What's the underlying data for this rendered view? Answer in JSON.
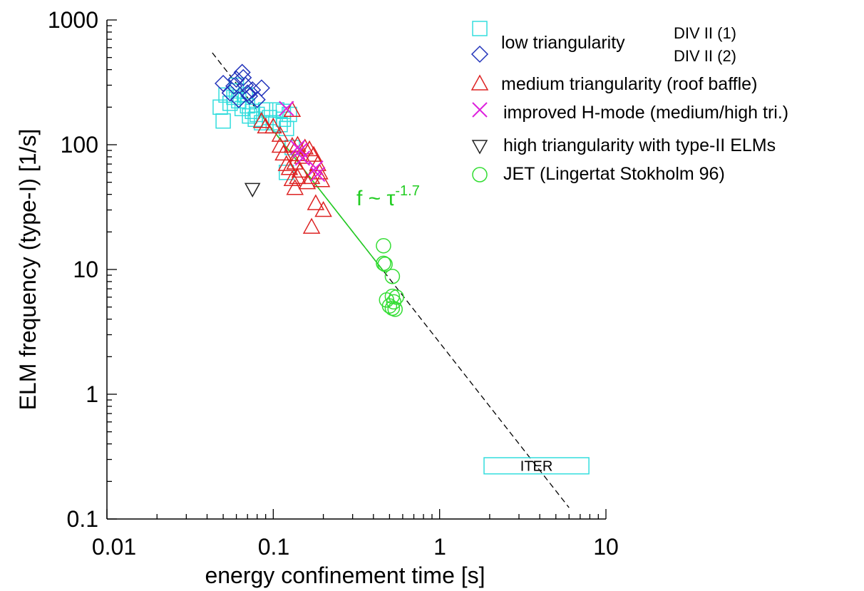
{
  "chart_data": {
    "type": "scatter",
    "xlabel": "energy confinement time [s]",
    "ylabel": "ELM frequency (type-I) [1/s]",
    "xscale": "log",
    "yscale": "log",
    "xlim": [
      0.01,
      10
    ],
    "ylim": [
      0.1,
      1000
    ],
    "x_tick_labels": [
      "0.01",
      "0.1",
      "1",
      "10"
    ],
    "y_tick_labels": [
      "1000",
      "100",
      "10",
      "1",
      "0.1"
    ],
    "legend_position": "top-right",
    "legend_group_label": "low triangularity",
    "series": [
      {
        "name": "DIV II (1)",
        "marker": "square",
        "color": "#33dddd",
        "points": [
          [
            0.048,
            200
          ],
          [
            0.05,
            155
          ],
          [
            0.052,
            250
          ],
          [
            0.055,
            215
          ],
          [
            0.058,
            240
          ],
          [
            0.06,
            270
          ],
          [
            0.062,
            225
          ],
          [
            0.065,
            195
          ],
          [
            0.068,
            250
          ],
          [
            0.07,
            205
          ],
          [
            0.072,
            170
          ],
          [
            0.075,
            185
          ],
          [
            0.078,
            160
          ],
          [
            0.08,
            175
          ],
          [
            0.085,
            150
          ],
          [
            0.09,
            190
          ],
          [
            0.095,
            165
          ],
          [
            0.1,
            150
          ],
          [
            0.105,
            190
          ],
          [
            0.11,
            145
          ],
          [
            0.115,
            160
          ],
          [
            0.12,
            135
          ],
          [
            0.125,
            175
          ],
          [
            0.13,
            95
          ],
          [
            0.06,
            300
          ],
          [
            0.115,
            185
          ],
          [
            0.12,
            60
          ]
        ]
      },
      {
        "name": "DIV II (2)",
        "marker": "diamond",
        "color": "#2233bb",
        "points": [
          [
            0.05,
            310
          ],
          [
            0.055,
            260
          ],
          [
            0.058,
            295
          ],
          [
            0.06,
            335
          ],
          [
            0.062,
            230
          ],
          [
            0.065,
            380
          ],
          [
            0.066,
            345
          ],
          [
            0.068,
            300
          ],
          [
            0.07,
            260
          ],
          [
            0.072,
            245
          ],
          [
            0.075,
            275
          ],
          [
            0.08,
            230
          ],
          [
            0.085,
            285
          ]
        ]
      },
      {
        "name": "medium triangularity (roof baffle)",
        "marker": "triangle",
        "color": "#dd2222",
        "points": [
          [
            0.085,
            155
          ],
          [
            0.09,
            140
          ],
          [
            0.1,
            140
          ],
          [
            0.11,
            120
          ],
          [
            0.11,
            98
          ],
          [
            0.115,
            85
          ],
          [
            0.12,
            70
          ],
          [
            0.125,
            65
          ],
          [
            0.13,
            190
          ],
          [
            0.13,
            98
          ],
          [
            0.135,
            72
          ],
          [
            0.13,
            53
          ],
          [
            0.14,
            100
          ],
          [
            0.14,
            84
          ],
          [
            0.145,
            62
          ],
          [
            0.135,
            45
          ],
          [
            0.15,
            80
          ],
          [
            0.155,
            95
          ],
          [
            0.16,
            50
          ],
          [
            0.165,
            92
          ],
          [
            0.17,
            55
          ],
          [
            0.17,
            22
          ],
          [
            0.175,
            83
          ],
          [
            0.18,
            34
          ],
          [
            0.185,
            70
          ],
          [
            0.19,
            60
          ],
          [
            0.195,
            52
          ],
          [
            0.2,
            30
          ],
          [
            0.14,
            55
          ]
        ]
      },
      {
        "name": "improved H-mode (medium/high tri.)",
        "marker": "x",
        "color": "#dd22dd",
        "points": [
          [
            0.12,
            195
          ],
          [
            0.14,
            95
          ],
          [
            0.145,
            90
          ],
          [
            0.15,
            78
          ],
          [
            0.18,
            65
          ],
          [
            0.185,
            58
          ]
        ]
      },
      {
        "name": "high triangularity with type-II ELMs",
        "marker": "triangle-down",
        "color": "#222222",
        "points": [
          [
            0.075,
            44
          ]
        ]
      },
      {
        "name": "JET (Lingertat Stokholm 96)",
        "marker": "circle",
        "color": "#33dd33",
        "points": [
          [
            0.46,
            15.5
          ],
          [
            0.46,
            11.2
          ],
          [
            0.47,
            11
          ],
          [
            0.52,
            8.8
          ],
          [
            0.48,
            5.7
          ],
          [
            0.52,
            6.1
          ],
          [
            0.53,
            5.5
          ],
          [
            0.5,
            5.1
          ],
          [
            0.52,
            4.9
          ],
          [
            0.54,
            4.8
          ],
          [
            0.55,
            6
          ]
        ]
      }
    ],
    "fit_line": {
      "label_base": "f ~ τ",
      "label_exponent": "-1.7",
      "x_start": 0.043,
      "x_end": 6.0,
      "x_solid_end": 0.46,
      "f_at_0_1": 130,
      "exponent": -1.7
    },
    "annotation_box": {
      "label": "ITER",
      "x_range": [
        1.85,
        7.9
      ],
      "y_range": [
        0.23,
        0.31
      ]
    },
    "colors": {
      "fit_line": "#22cc22",
      "dashed_line": "#000000",
      "iter_box": "#33dddd"
    }
  }
}
